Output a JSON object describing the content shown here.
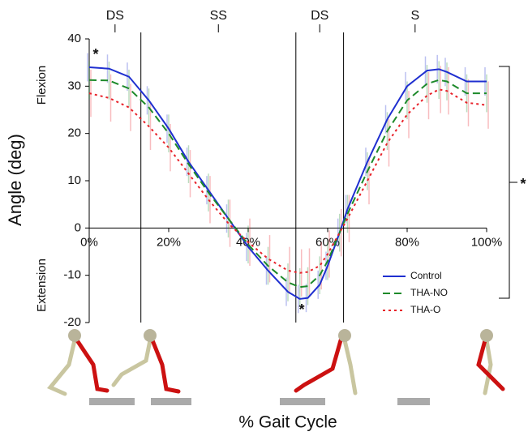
{
  "chart_data": {
    "type": "line",
    "xlabel": "% Gait Cycle",
    "ylabel": "Angle (deg)",
    "flexion_label": "Flexion",
    "extension_label": "Extension",
    "x": [
      0,
      5,
      10,
      15,
      20,
      25,
      30,
      35,
      40,
      45,
      50,
      53,
      55,
      58,
      60,
      63,
      65,
      70,
      75,
      80,
      85,
      88,
      90,
      95,
      100
    ],
    "series": [
      {
        "name": "Control",
        "color": "#1f2fd0",
        "style": "solid",
        "values": [
          34,
          33.7,
          32,
          27,
          21,
          14,
          8,
          2,
          -4,
          -9,
          -13.5,
          -15,
          -14.8,
          -12,
          -8,
          -1,
          4,
          14,
          23,
          30,
          33.3,
          33.6,
          33,
          31,
          31
        ],
        "errors": [
          3,
          3,
          3,
          3,
          3,
          3,
          3,
          3,
          3,
          3,
          3,
          3,
          3,
          3,
          3,
          3,
          3,
          3,
          3,
          3,
          3,
          3,
          3,
          3,
          3
        ]
      },
      {
        "name": "THA-NO",
        "color": "#1d8a2a",
        "style": "dashed",
        "values": [
          31.3,
          31.2,
          29.5,
          25.5,
          20,
          13.5,
          7.5,
          2,
          -3.5,
          -8,
          -11.5,
          -12.5,
          -12.3,
          -10,
          -7,
          -1,
          3,
          12,
          20.5,
          27,
          30.5,
          31.3,
          31,
          28.5,
          28.5
        ],
        "errors": [
          4,
          4,
          4,
          4,
          4,
          4,
          4,
          4,
          4,
          4,
          4,
          4,
          4,
          4,
          4,
          4,
          4,
          4,
          4,
          4,
          4,
          4,
          4,
          4,
          4
        ]
      },
      {
        "name": "THA-O",
        "color": "#e8222a",
        "style": "dotted",
        "values": [
          28.5,
          27.5,
          25.5,
          21.5,
          17,
          11.5,
          6,
          1,
          -3,
          -6.5,
          -9,
          -9.5,
          -9.3,
          -8,
          -5.5,
          -1,
          2,
          10,
          18,
          24,
          28,
          29.3,
          29,
          26.5,
          26
        ],
        "errors": [
          5,
          5,
          5,
          5,
          5,
          5,
          5,
          5,
          5,
          5,
          5,
          5,
          5,
          5,
          5,
          5,
          5,
          5,
          5,
          5,
          5,
          5,
          5,
          5,
          5
        ]
      }
    ],
    "xlim": [
      0,
      100
    ],
    "ylim": [
      -20,
      40
    ],
    "xticks": [
      {
        "value": 0,
        "label": "0%"
      },
      {
        "value": 20,
        "label": "20%"
      },
      {
        "value": 40,
        "label": "40%"
      },
      {
        "value": 60,
        "label": "60%"
      },
      {
        "value": 80,
        "label": "80%"
      },
      {
        "value": 100,
        "label": "100%"
      }
    ],
    "yticks": [
      -20,
      -10,
      0,
      10,
      20,
      30,
      40
    ],
    "phases": {
      "labels": [
        "DS",
        "SS",
        "DS",
        "S"
      ],
      "boundaries": [
        13,
        52,
        64
      ]
    },
    "significance_labels": [
      "*",
      "*",
      "*"
    ],
    "legend": "lower right"
  }
}
